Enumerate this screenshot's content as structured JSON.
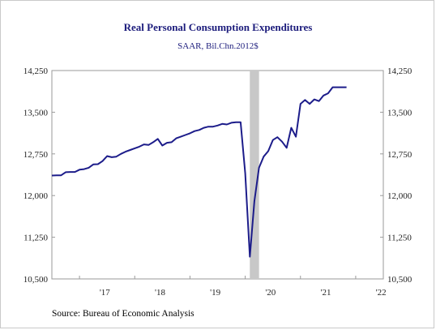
{
  "chart_data": {
    "type": "line",
    "title": "Real Personal Consumption Expenditures",
    "subtitle": "SAAR, Bil.Chn.2012$",
    "source": "Source:  Bureau of Economic Analysis",
    "ylim": [
      10500,
      14250
    ],
    "y_ticks": [
      10500,
      11250,
      12000,
      12750,
      13500,
      14250
    ],
    "y_tick_labels": [
      "10,500",
      "11,250",
      "12,000",
      "12,750",
      "13,500",
      "14,250"
    ],
    "x_tick_labels": [
      "'17",
      "'18",
      "'19",
      "'20",
      "'21",
      "'22"
    ],
    "x_range": [
      "2016-07",
      "2022-07"
    ],
    "grid": false,
    "shaded_period": {
      "start": "2020-02",
      "end": "2020-04",
      "color": "#c8c8c8"
    },
    "series": [
      {
        "color": "#1c1c8a",
        "x": [
          "2016-07",
          "2016-08",
          "2016-09",
          "2016-10",
          "2016-11",
          "2016-12",
          "2017-01",
          "2017-02",
          "2017-03",
          "2017-04",
          "2017-05",
          "2017-06",
          "2017-07",
          "2017-08",
          "2017-09",
          "2017-10",
          "2017-11",
          "2017-12",
          "2018-01",
          "2018-02",
          "2018-03",
          "2018-04",
          "2018-05",
          "2018-06",
          "2018-07",
          "2018-08",
          "2018-09",
          "2018-10",
          "2018-11",
          "2018-12",
          "2019-01",
          "2019-02",
          "2019-03",
          "2019-04",
          "2019-05",
          "2019-06",
          "2019-07",
          "2019-08",
          "2019-09",
          "2019-10",
          "2019-11",
          "2019-12",
          "2020-01",
          "2020-02",
          "2020-03",
          "2020-04",
          "2020-05",
          "2020-06",
          "2020-07",
          "2020-08",
          "2020-09",
          "2020-10",
          "2020-11",
          "2020-12",
          "2021-01",
          "2021-02",
          "2021-03",
          "2021-04",
          "2021-05",
          "2021-06",
          "2021-07",
          "2021-08",
          "2021-09",
          "2021-10",
          "2021-11"
        ],
        "values": [
          12360,
          12365,
          12365,
          12420,
          12425,
          12425,
          12465,
          12475,
          12500,
          12560,
          12565,
          12620,
          12710,
          12690,
          12700,
          12750,
          12790,
          12820,
          12850,
          12880,
          12920,
          12910,
          12960,
          13020,
          12900,
          12950,
          12960,
          13030,
          13060,
          13090,
          13120,
          13160,
          13180,
          13220,
          13240,
          13240,
          13260,
          13290,
          13280,
          13310,
          13320,
          13320,
          12400,
          10900,
          11900,
          12500,
          12700,
          12800,
          13000,
          13050,
          12970,
          12860,
          13220,
          13060,
          13650,
          13720,
          13650,
          13730,
          13700,
          13800,
          13840,
          13950,
          13950,
          13950,
          13950
        ]
      }
    ]
  }
}
